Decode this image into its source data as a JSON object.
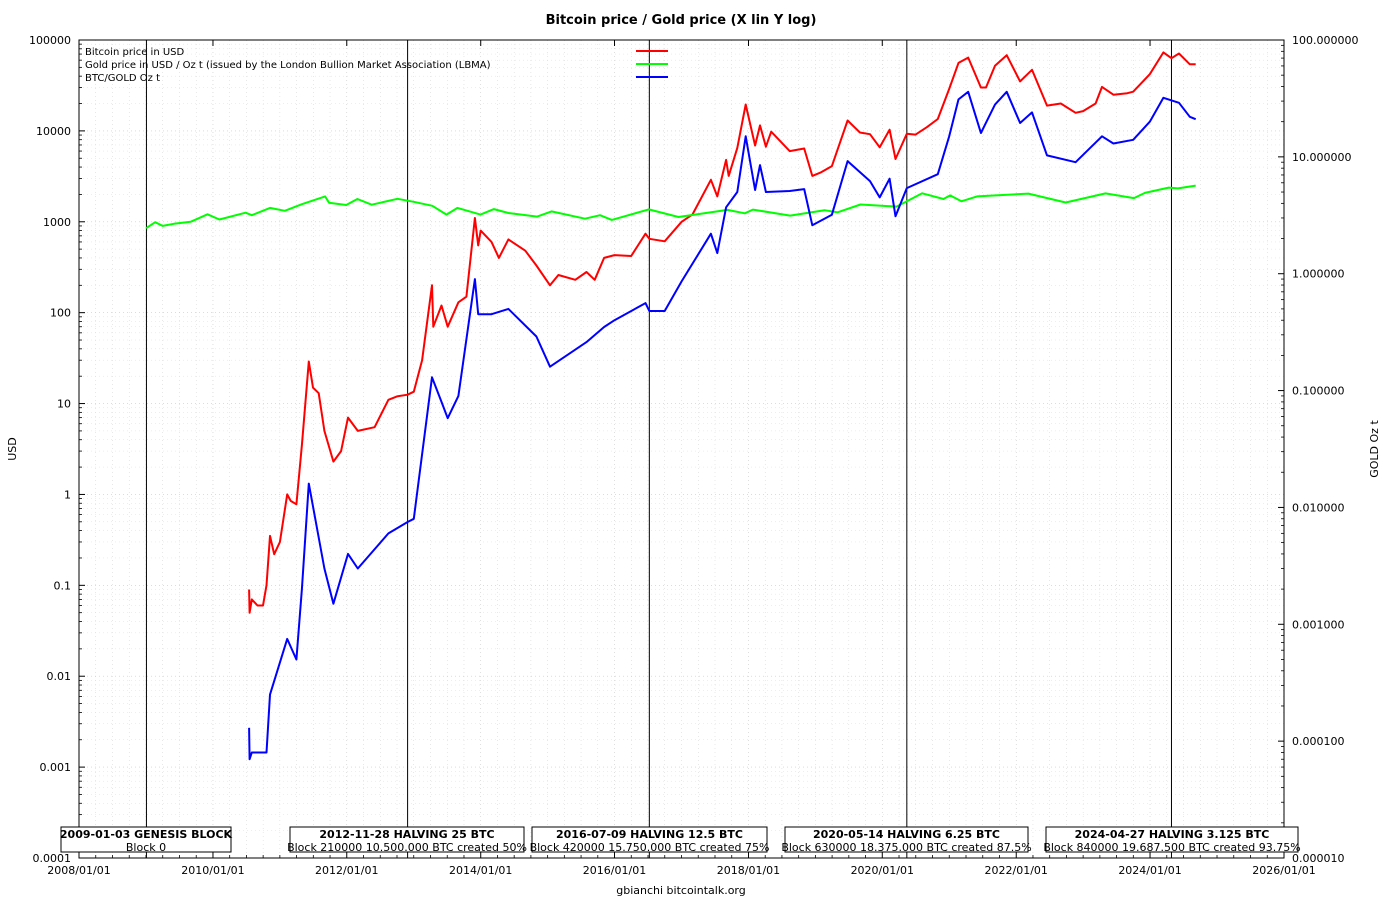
{
  "chart_data": {
    "type": "line",
    "title": "Bitcoin price / Gold price (X lin Y log)",
    "ylabel": "USD",
    "y2label": "GOLD Oz t",
    "footer": "gbianchi bitcointalk.org",
    "x_axis": {
      "scale": "linear-date",
      "range": [
        "2008-01-01",
        "2026-01-01"
      ],
      "ticks": [
        "2008/01/01",
        "2010/01/01",
        "2012/01/01",
        "2014/01/01",
        "2016/01/01",
        "2018/01/01",
        "2020/01/01",
        "2022/01/01",
        "2024/01/01",
        "2026/01/01"
      ]
    },
    "y_axis": {
      "scale": "log",
      "range": [
        0.0001,
        100000
      ],
      "ticks": [
        "0.0001",
        "0.001",
        "0.01",
        "0.1",
        "1",
        "10",
        "100",
        "1000",
        "10000",
        "100000"
      ]
    },
    "y2_axis": {
      "scale": "log",
      "range": [
        1e-05,
        100
      ],
      "ticks": [
        "0.000010",
        "0.000100",
        "0.001000",
        "0.010000",
        "0.100000",
        "1.000000",
        "10.000000",
        "100.000000"
      ]
    },
    "grid": true,
    "legend_position": "top-left",
    "series": [
      {
        "name": "Bitcoin price in USD",
        "color": "#ff0000",
        "axis": "left",
        "points": [
          [
            "2010-07-17",
            0.09
          ],
          [
            "2010-07-20",
            0.05
          ],
          [
            "2010-08-01",
            0.07
          ],
          [
            "2010-09-01",
            0.06
          ],
          [
            "2010-10-01",
            0.06
          ],
          [
            "2010-10-20",
            0.1
          ],
          [
            "2010-11-08",
            0.35
          ],
          [
            "2010-12-01",
            0.22
          ],
          [
            "2011-01-01",
            0.3
          ],
          [
            "2011-02-10",
            1.0
          ],
          [
            "2011-03-01",
            0.85
          ],
          [
            "2011-04-01",
            0.78
          ],
          [
            "2011-05-01",
            3.5
          ],
          [
            "2011-06-08",
            29
          ],
          [
            "2011-07-01",
            15
          ],
          [
            "2011-08-01",
            13
          ],
          [
            "2011-09-01",
            5
          ],
          [
            "2011-10-20",
            2.3
          ],
          [
            "2011-12-01",
            3
          ],
          [
            "2012-01-08",
            7
          ],
          [
            "2012-03-01",
            5
          ],
          [
            "2012-06-01",
            5.5
          ],
          [
            "2012-08-15",
            11
          ],
          [
            "2012-10-01",
            12
          ],
          [
            "2012-11-28",
            12.5
          ],
          [
            "2013-01-01",
            13.5
          ],
          [
            "2013-02-15",
            30
          ],
          [
            "2013-04-10",
            200
          ],
          [
            "2013-04-17",
            70
          ],
          [
            "2013-06-01",
            120
          ],
          [
            "2013-07-05",
            70
          ],
          [
            "2013-09-01",
            130
          ],
          [
            "2013-10-15",
            150
          ],
          [
            "2013-11-30",
            1100
          ],
          [
            "2013-12-18",
            550
          ],
          [
            "2014-01-01",
            800
          ],
          [
            "2014-03-01",
            600
          ],
          [
            "2014-04-10",
            400
          ],
          [
            "2014-06-01",
            640
          ],
          [
            "2014-09-01",
            480
          ],
          [
            "2014-11-01",
            330
          ],
          [
            "2015-01-14",
            200
          ],
          [
            "2015-03-01",
            260
          ],
          [
            "2015-06-01",
            230
          ],
          [
            "2015-08-01",
            280
          ],
          [
            "2015-09-15",
            230
          ],
          [
            "2015-11-05",
            400
          ],
          [
            "2016-01-01",
            430
          ],
          [
            "2016-04-01",
            420
          ],
          [
            "2016-06-18",
            740
          ],
          [
            "2016-07-09",
            650
          ],
          [
            "2016-10-01",
            610
          ],
          [
            "2017-01-01",
            1000
          ],
          [
            "2017-03-01",
            1200
          ],
          [
            "2017-06-10",
            2900
          ],
          [
            "2017-07-15",
            1900
          ],
          [
            "2017-09-01",
            4800
          ],
          [
            "2017-09-15",
            3200
          ],
          [
            "2017-11-01",
            6500
          ],
          [
            "2017-12-17",
            19500
          ],
          [
            "2018-02-06",
            6900
          ],
          [
            "2018-03-05",
            11500
          ],
          [
            "2018-04-06",
            6700
          ],
          [
            "2018-05-05",
            9800
          ],
          [
            "2018-08-14",
            6000
          ],
          [
            "2018-11-01",
            6400
          ],
          [
            "2018-12-15",
            3200
          ],
          [
            "2019-02-01",
            3500
          ],
          [
            "2019-04-01",
            4100
          ],
          [
            "2019-06-26",
            13000
          ],
          [
            "2019-09-01",
            9600
          ],
          [
            "2019-10-26",
            9200
          ],
          [
            "2019-12-18",
            6600
          ],
          [
            "2020-02-10",
            10300
          ],
          [
            "2020-03-13",
            4900
          ],
          [
            "2020-05-14",
            9300
          ],
          [
            "2020-07-01",
            9100
          ],
          [
            "2020-09-01",
            11000
          ],
          [
            "2020-10-30",
            13500
          ],
          [
            "2020-12-31",
            29000
          ],
          [
            "2021-02-20",
            56000
          ],
          [
            "2021-04-14",
            64000
          ],
          [
            "2021-06-22",
            30000
          ],
          [
            "2021-07-20",
            30000
          ],
          [
            "2021-09-07",
            52000
          ],
          [
            "2021-11-10",
            68000
          ],
          [
            "2022-01-22",
            35000
          ],
          [
            "2022-03-28",
            47000
          ],
          [
            "2022-06-18",
            19000
          ],
          [
            "2022-09-01",
            20000
          ],
          [
            "2022-11-21",
            15800
          ],
          [
            "2023-01-01",
            16500
          ],
          [
            "2023-03-10",
            20000
          ],
          [
            "2023-04-14",
            30500
          ],
          [
            "2023-06-15",
            25000
          ],
          [
            "2023-08-30",
            26000
          ],
          [
            "2023-10-01",
            27000
          ],
          [
            "2023-12-31",
            42000
          ],
          [
            "2024-03-14",
            73000
          ],
          [
            "2024-04-27",
            63000
          ],
          [
            "2024-06-07",
            71000
          ],
          [
            "2024-08-05",
            54000
          ],
          [
            "2024-09-06",
            54000
          ]
        ]
      },
      {
        "name": "Gold price in USD / Oz t (issued by the London Bullion Market Association (LBMA)",
        "color": "#00ff00",
        "axis": "left",
        "points": [
          [
            "2009-01-01",
            850
          ],
          [
            "2009-02-20",
            990
          ],
          [
            "2009-04-01",
            900
          ],
          [
            "2009-06-01",
            950
          ],
          [
            "2009-09-01",
            1000
          ],
          [
            "2009-12-02",
            1210
          ],
          [
            "2010-02-05",
            1060
          ],
          [
            "2010-06-28",
            1260
          ],
          [
            "2010-08-01",
            1180
          ],
          [
            "2010-11-08",
            1420
          ],
          [
            "2011-01-28",
            1320
          ],
          [
            "2011-05-01",
            1560
          ],
          [
            "2011-09-05",
            1900
          ],
          [
            "2011-09-26",
            1620
          ],
          [
            "2011-12-29",
            1530
          ],
          [
            "2012-02-28",
            1780
          ],
          [
            "2012-05-16",
            1540
          ],
          [
            "2012-10-04",
            1790
          ],
          [
            "2012-12-31",
            1660
          ],
          [
            "2013-04-12",
            1500
          ],
          [
            "2013-06-28",
            1200
          ],
          [
            "2013-08-27",
            1420
          ],
          [
            "2013-12-31",
            1200
          ],
          [
            "2014-03-14",
            1380
          ],
          [
            "2014-06-01",
            1250
          ],
          [
            "2014-11-05",
            1140
          ],
          [
            "2015-01-22",
            1300
          ],
          [
            "2015-07-24",
            1080
          ],
          [
            "2015-10-14",
            1180
          ],
          [
            "2015-12-17",
            1050
          ],
          [
            "2016-07-06",
            1370
          ],
          [
            "2016-12-15",
            1130
          ],
          [
            "2017-09-08",
            1350
          ],
          [
            "2017-12-12",
            1240
          ],
          [
            "2018-01-25",
            1360
          ],
          [
            "2018-08-16",
            1170
          ],
          [
            "2019-02-20",
            1340
          ],
          [
            "2019-05-02",
            1270
          ],
          [
            "2019-09-04",
            1550
          ],
          [
            "2020-03-19",
            1470
          ],
          [
            "2020-08-06",
            2060
          ],
          [
            "2020-11-30",
            1780
          ],
          [
            "2021-01-05",
            1950
          ],
          [
            "2021-03-08",
            1680
          ],
          [
            "2021-06-01",
            1900
          ],
          [
            "2022-03-08",
            2040
          ],
          [
            "2022-09-28",
            1630
          ],
          [
            "2023-05-03",
            2050
          ],
          [
            "2023-10-05",
            1820
          ],
          [
            "2023-12-04",
            2080
          ],
          [
            "2024-04-12",
            2380
          ],
          [
            "2024-06-01",
            2330
          ],
          [
            "2024-09-06",
            2500
          ]
        ]
      },
      {
        "name": "BTC/GOLD Oz t",
        "color": "#0000ff",
        "axis": "right",
        "points": [
          [
            "2010-07-17",
            0.00013
          ],
          [
            "2010-07-20",
            7e-05
          ],
          [
            "2010-08-01",
            8e-05
          ],
          [
            "2010-10-20",
            8e-05
          ],
          [
            "2010-11-08",
            0.00025
          ],
          [
            "2011-02-10",
            0.00075
          ],
          [
            "2011-04-01",
            0.0005
          ],
          [
            "2011-05-01",
            0.002
          ],
          [
            "2011-06-08",
            0.016
          ],
          [
            "2011-09-01",
            0.003
          ],
          [
            "2011-10-20",
            0.0015
          ],
          [
            "2012-01-08",
            0.004
          ],
          [
            "2012-03-01",
            0.003
          ],
          [
            "2012-08-15",
            0.006
          ],
          [
            "2012-11-28",
            0.0075
          ],
          [
            "2013-01-01",
            0.008
          ],
          [
            "2013-04-10",
            0.13
          ],
          [
            "2013-06-01",
            0.08
          ],
          [
            "2013-07-05",
            0.058
          ],
          [
            "2013-09-01",
            0.09
          ],
          [
            "2013-11-30",
            0.9
          ],
          [
            "2013-12-18",
            0.45
          ],
          [
            "2014-03-01",
            0.45
          ],
          [
            "2014-06-01",
            0.5
          ],
          [
            "2014-11-01",
            0.29
          ],
          [
            "2015-01-14",
            0.16
          ],
          [
            "2015-08-01",
            0.26
          ],
          [
            "2015-11-05",
            0.35
          ],
          [
            "2016-01-01",
            0.4
          ],
          [
            "2016-06-18",
            0.56
          ],
          [
            "2016-07-09",
            0.48
          ],
          [
            "2016-10-01",
            0.48
          ],
          [
            "2017-01-01",
            0.86
          ],
          [
            "2017-06-10",
            2.2
          ],
          [
            "2017-07-15",
            1.5
          ],
          [
            "2017-09-01",
            3.7
          ],
          [
            "2017-11-01",
            5
          ],
          [
            "2017-12-17",
            15
          ],
          [
            "2018-02-06",
            5.2
          ],
          [
            "2018-03-05",
            8.5
          ],
          [
            "2018-04-06",
            5
          ],
          [
            "2018-08-14",
            5.1
          ],
          [
            "2018-11-01",
            5.3
          ],
          [
            "2018-12-15",
            2.6
          ],
          [
            "2019-04-01",
            3.2
          ],
          [
            "2019-06-26",
            9.2
          ],
          [
            "2019-10-26",
            6.2
          ],
          [
            "2019-12-18",
            4.5
          ],
          [
            "2020-02-10",
            6.5
          ],
          [
            "2020-03-13",
            3.1
          ],
          [
            "2020-05-14",
            5.4
          ],
          [
            "2020-10-30",
            7.1
          ],
          [
            "2020-12-31",
            15
          ],
          [
            "2021-02-20",
            31
          ],
          [
            "2021-04-14",
            36
          ],
          [
            "2021-06-22",
            16
          ],
          [
            "2021-09-07",
            28
          ],
          [
            "2021-11-10",
            36
          ],
          [
            "2022-01-22",
            19.5
          ],
          [
            "2022-03-28",
            24
          ],
          [
            "2022-06-18",
            10.3
          ],
          [
            "2022-11-21",
            9.0
          ],
          [
            "2023-04-14",
            15
          ],
          [
            "2023-06-15",
            13
          ],
          [
            "2023-10-01",
            14
          ],
          [
            "2023-12-31",
            20
          ],
          [
            "2024-03-14",
            32
          ],
          [
            "2024-06-07",
            29
          ],
          [
            "2024-08-05",
            22
          ],
          [
            "2024-09-06",
            21
          ]
        ]
      }
    ],
    "annotations": [
      {
        "date": "2009-01-03",
        "title": "2009-01-03 GENESIS BLOCK",
        "detail": "Block 0"
      },
      {
        "date": "2012-11-28",
        "title": "2012-11-28 HALVING 25 BTC",
        "detail": "Block 210000 10.500.000 BTC created 50%"
      },
      {
        "date": "2016-07-09",
        "title": "2016-07-09 HALVING 12.5 BTC",
        "detail": "Block 420000 15.750.000 BTC created 75%"
      },
      {
        "date": "2020-05-14",
        "title": "2020-05-14 HALVING 6.25 BTC",
        "detail": "Block 630000 18.375.000 BTC created 87.5%"
      },
      {
        "date": "2024-04-27",
        "title": "2024-04-27 HALVING 3.125 BTC",
        "detail": "Block 840000 19.687.500 BTC created 93.75%"
      }
    ]
  }
}
